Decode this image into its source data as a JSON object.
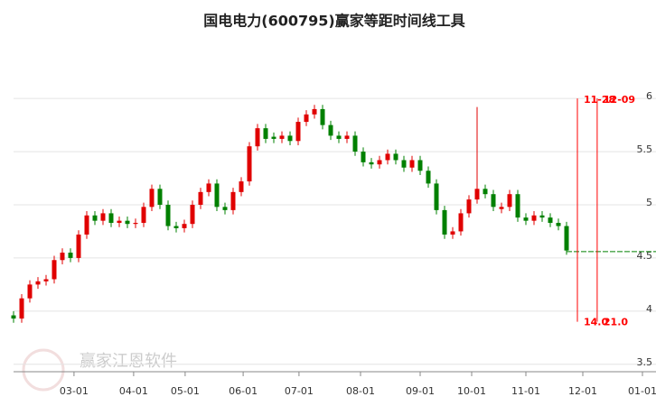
{
  "chart_data": {
    "type": "candlestick",
    "title": "国电电力(600795)赢家等距时间线工具",
    "watermark": "赢家江恩软件",
    "x": [
      0,
      3,
      6,
      9,
      12,
      15,
      18,
      21,
      24,
      27,
      30,
      33,
      36,
      39,
      42,
      45,
      48,
      51,
      54,
      57,
      60,
      63,
      66,
      69,
      72,
      75,
      78,
      81,
      84,
      87,
      90,
      93,
      96,
      99,
      102,
      105,
      108,
      111,
      114,
      117,
      120,
      123,
      126,
      129,
      132,
      135,
      138,
      141,
      144,
      147,
      150,
      153,
      156,
      159,
      162,
      165,
      168,
      171,
      174,
      177,
      180,
      183,
      186,
      189,
      192,
      195,
      198,
      201,
      204
    ],
    "open": [
      3.96,
      3.93,
      4.12,
      4.25,
      4.28,
      4.3,
      4.48,
      4.55,
      4.5,
      4.72,
      4.9,
      4.85,
      4.92,
      4.83,
      4.85,
      4.82,
      4.83,
      4.98,
      5.15,
      5.0,
      4.8,
      4.78,
      4.82,
      5.0,
      5.12,
      5.2,
      4.98,
      4.95,
      5.12,
      5.22,
      5.55,
      5.72,
      5.64,
      5.62,
      5.65,
      5.6,
      5.78,
      5.85,
      5.9,
      5.75,
      5.65,
      5.62,
      5.65,
      5.5,
      5.4,
      5.38,
      5.42,
      5.48,
      5.42,
      5.35,
      5.42,
      5.32,
      5.2,
      4.95,
      4.72,
      4.75,
      4.92,
      5.05,
      5.15,
      5.1,
      4.96,
      4.98,
      5.1,
      4.88,
      4.85,
      4.9,
      4.88,
      4.83,
      4.8
    ],
    "high": [
      4.0,
      4.16,
      4.29,
      4.32,
      4.34,
      4.52,
      4.59,
      4.59,
      4.76,
      4.94,
      4.94,
      4.96,
      4.96,
      4.89,
      4.89,
      4.87,
      5.02,
      5.19,
      5.19,
      5.04,
      4.84,
      4.86,
      5.04,
      5.16,
      5.24,
      5.24,
      5.02,
      5.16,
      5.26,
      5.59,
      5.76,
      5.76,
      5.68,
      5.69,
      5.69,
      5.82,
      5.89,
      5.94,
      5.94,
      5.79,
      5.69,
      5.69,
      5.69,
      5.54,
      5.44,
      5.46,
      5.52,
      5.52,
      5.46,
      5.46,
      5.46,
      5.36,
      5.24,
      4.99,
      4.79,
      4.96,
      5.09,
      5.92,
      5.19,
      5.14,
      5.02,
      5.14,
      5.14,
      4.92,
      4.94,
      4.94,
      4.92,
      4.87,
      4.84
    ],
    "low": [
      3.89,
      3.89,
      4.08,
      4.21,
      4.24,
      4.26,
      4.44,
      4.46,
      4.46,
      4.68,
      4.81,
      4.81,
      4.79,
      4.79,
      4.78,
      4.78,
      4.79,
      4.94,
      4.96,
      4.76,
      4.74,
      4.74,
      4.78,
      4.96,
      5.08,
      4.94,
      4.91,
      4.91,
      5.08,
      5.18,
      5.51,
      5.58,
      5.58,
      5.58,
      5.56,
      5.56,
      5.74,
      5.81,
      5.71,
      5.61,
      5.58,
      5.58,
      5.46,
      5.36,
      5.34,
      5.34,
      5.38,
      5.38,
      5.31,
      5.31,
      5.28,
      5.16,
      4.91,
      4.68,
      4.68,
      4.71,
      4.88,
      5.01,
      5.06,
      4.94,
      4.92,
      4.94,
      4.84,
      4.81,
      4.81,
      4.84,
      4.79,
      4.76,
      4.53
    ],
    "close": [
      3.93,
      4.12,
      4.25,
      4.28,
      4.3,
      4.48,
      4.55,
      4.5,
      4.72,
      4.9,
      4.85,
      4.92,
      4.83,
      4.85,
      4.82,
      4.83,
      4.98,
      5.15,
      5.0,
      4.8,
      4.78,
      4.82,
      5.0,
      5.12,
      5.2,
      4.98,
      4.95,
      5.12,
      5.22,
      5.55,
      5.72,
      5.62,
      5.62,
      5.65,
      5.6,
      5.78,
      5.85,
      5.9,
      5.75,
      5.65,
      5.62,
      5.65,
      5.5,
      5.4,
      5.38,
      5.42,
      5.48,
      5.42,
      5.35,
      5.42,
      5.32,
      5.2,
      4.95,
      4.72,
      4.75,
      4.92,
      5.05,
      5.15,
      5.1,
      4.98,
      4.98,
      5.1,
      4.88,
      4.85,
      4.9,
      4.88,
      4.83,
      4.8,
      4.57
    ],
    "up_color": "#e00000",
    "down_color": "#008000",
    "projection": {
      "x": [
        204,
        237
      ],
      "value": 4.56,
      "color": "#008000"
    },
    "time_lines": [
      {
        "x": 208,
        "top_label": "11-28",
        "bottom_label": "14.0"
      },
      {
        "x": 215.3,
        "top_label": "12-09",
        "bottom_label": "21.0"
      }
    ],
    "time_line_range": [
      3.9,
      6.0
    ],
    "time_line_color": "#ff0000",
    "xlim": [
      0,
      237
    ],
    "ylim": [
      3.43,
      6.12
    ],
    "yticks": [
      {
        "value": 3.5,
        "label": "3.5"
      },
      4,
      4.5,
      5,
      5.5,
      6
    ],
    "xticks": [
      {
        "value": 22.3,
        "label": "03-01"
      },
      {
        "value": 44.3,
        "label": "04-01"
      },
      {
        "value": 63.3,
        "label": "05-01"
      },
      {
        "value": 84.7,
        "label": "06-01"
      },
      {
        "value": 105.3,
        "label": "07-01"
      },
      {
        "value": 128,
        "label": "08-01"
      },
      {
        "value": 150,
        "label": "09-01"
      },
      {
        "value": 169,
        "label": "10-01"
      },
      {
        "value": 189,
        "label": "11-01"
      },
      {
        "value": 210,
        "label": "12-01"
      },
      {
        "value": 232,
        "label": "01-01"
      }
    ],
    "grid": true
  }
}
